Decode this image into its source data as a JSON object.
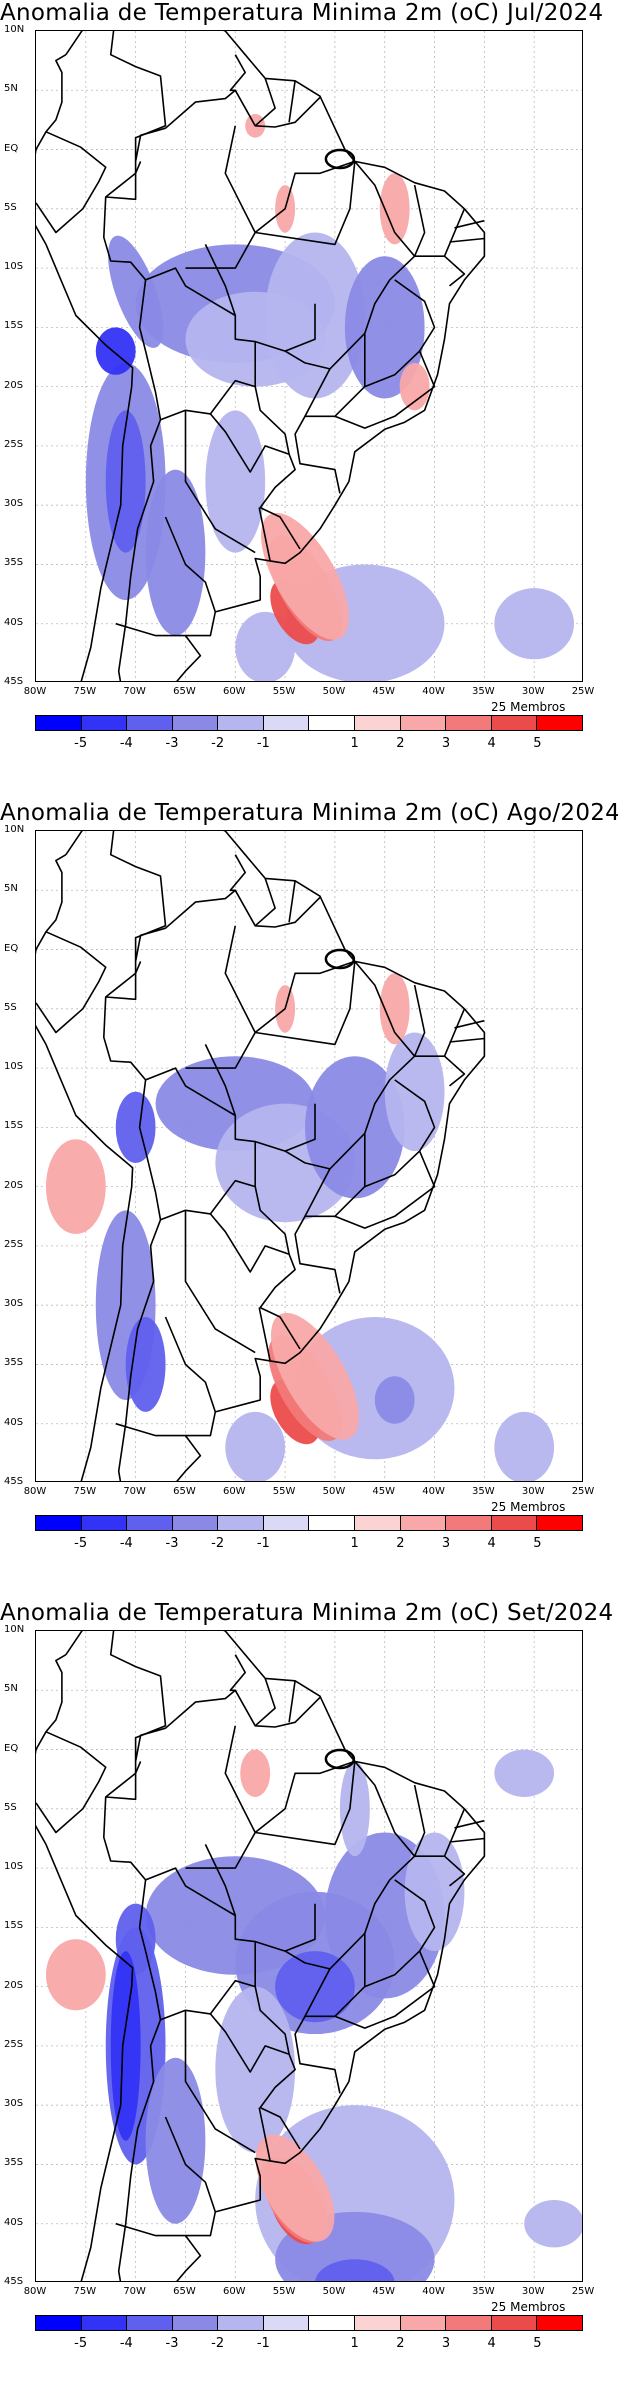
{
  "panels": [
    {
      "title": "Anomalia de Temperatura Minima 2m (oC) Jul/2024",
      "members": "25 Membros"
    },
    {
      "title": "Anomalia de Temperatura Minima 2m (oC) Ago/2024",
      "members": "25 Membros"
    },
    {
      "title": "Anomalia de Temperatura Minima 2m (oC) Set/2024",
      "members": "25 Membros"
    }
  ],
  "lat_labels": [
    "10N",
    "5N",
    "EQ",
    "5S",
    "10S",
    "15S",
    "20S",
    "25S",
    "30S",
    "35S",
    "40S",
    "45S"
  ],
  "lon_labels": [
    "80W",
    "75W",
    "70W",
    "65W",
    "60W",
    "55W",
    "50W",
    "45W",
    "40W",
    "35W",
    "30W",
    "25W"
  ],
  "colorbar": {
    "labels": [
      "-5",
      "-4",
      "-3",
      "-2",
      "-1",
      "1",
      "2",
      "3",
      "4",
      "5"
    ],
    "colors": [
      "#0000ff",
      "#3333f6",
      "#6060ee",
      "#8a8ae6",
      "#b5b5ef",
      "#dadaf7",
      "#ffffff",
      "#fcd3d3",
      "#f8a8a8",
      "#f27a7a",
      "#ec4b4b",
      "#ff0000"
    ]
  },
  "chart_data": {
    "type": "heatmap",
    "variable": "Anomalia de Temperatura Minima 2m",
    "unit": "oC",
    "ensemble": "25 Membros",
    "lon_range": [
      -80,
      -25
    ],
    "lat_range": [
      -45,
      10
    ],
    "levels": [
      -5,
      -4,
      -3,
      -2,
      -1,
      1,
      2,
      3,
      4,
      5
    ],
    "maps": [
      {
        "month": "Jul/2024",
        "features": [
          {
            "region": "central Brazil",
            "anomaly": -1.5
          },
          {
            "region": "Andes",
            "anomaly": -2.5
          },
          {
            "region": "Atlantic off Uruguay 40S 55W",
            "anomaly": 3.5
          },
          {
            "region": "south Atlantic 40S 45W",
            "anomaly": -1.5
          }
        ]
      },
      {
        "month": "Ago/2024",
        "features": [
          {
            "region": "central Brazil",
            "anomaly": -1.5
          },
          {
            "region": "Andes",
            "anomaly": -2.5
          },
          {
            "region": "Atlantic off Uruguay 40S 55W",
            "anomaly": 3.5
          },
          {
            "region": "south Atlantic 38S 42W",
            "anomaly": -2.0
          }
        ]
      },
      {
        "month": "Set/2024",
        "features": [
          {
            "region": "central and southern Brazil",
            "anomaly": -2.0
          },
          {
            "region": "Andes",
            "anomaly": -3.0
          },
          {
            "region": "Atlantic off Uruguay 40S 55W",
            "anomaly": 3.5
          },
          {
            "region": "south Atlantic 42S 50W",
            "anomaly": -3.0
          }
        ]
      }
    ]
  }
}
